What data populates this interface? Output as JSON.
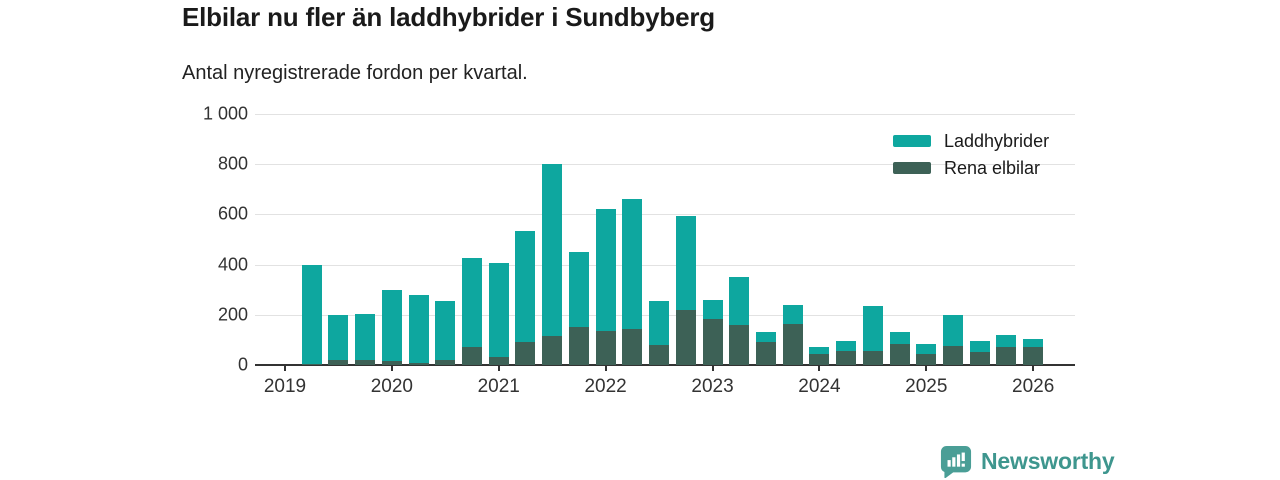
{
  "header": {
    "title": "Elbilar nu fler än laddhybrider i Sundbyberg",
    "subtitle": "Antal nyregistrerade fordon per kvartal."
  },
  "footer": {
    "brand": "Newsworthy"
  },
  "colors": {
    "laddhybrider": "#0ea79f",
    "rena_elbilar": "#3d6156",
    "gridline": "#e2e2e2",
    "axis": "#333333",
    "brand_teal": "#3e968e",
    "logo_icon": "#4a9e96"
  },
  "chart_data": {
    "type": "bar",
    "stacked": true,
    "title": "Elbilar nu fler än laddhybrider i Sundbyberg",
    "subtitle": "Antal nyregistrerade fordon per kvartal.",
    "xlabel": "",
    "ylabel": "",
    "ylim": [
      0,
      1000
    ],
    "grid": true,
    "legend_position": "top-right",
    "yticks": [
      {
        "value": 0,
        "label": "0"
      },
      {
        "value": 200,
        "label": "200"
      },
      {
        "value": 400,
        "label": "400"
      },
      {
        "value": 600,
        "label": "600"
      },
      {
        "value": 800,
        "label": "800"
      },
      {
        "value": 1000,
        "label": "1 000"
      }
    ],
    "xticks": [
      "2019",
      "2020",
      "2021",
      "2022",
      "2023",
      "2024",
      "2025",
      "2026"
    ],
    "categories": [
      "2019 Q2",
      "2019 Q3",
      "2019 Q4",
      "2020 Q1",
      "2020 Q2",
      "2020 Q3",
      "2020 Q4",
      "2021 Q1",
      "2021 Q2",
      "2021 Q3",
      "2021 Q4",
      "2022 Q1",
      "2022 Q2",
      "2022 Q3",
      "2022 Q4",
      "2023 Q1",
      "2023 Q2",
      "2023 Q3",
      "2023 Q4",
      "2024 Q1",
      "2024 Q2",
      "2024 Q3",
      "2024 Q4",
      "2025 Q1",
      "2025 Q2",
      "2025 Q3",
      "2025 Q4",
      "2026 Q1"
    ],
    "stack_order": [
      "Rena elbilar",
      "Laddhybrider"
    ],
    "series": [
      {
        "name": "Laddhybrider",
        "color": "#0ea79f",
        "values": [
          395,
          180,
          185,
          285,
          270,
          235,
          355,
          375,
          445,
          685,
          300,
          485,
          515,
          175,
          375,
          75,
          190,
          40,
          75,
          25,
          40,
          180,
          45,
          40,
          125,
          45,
          50,
          35
        ]
      },
      {
        "name": "Rena elbilar",
        "color": "#3d6156",
        "values": [
          5,
          20,
          20,
          15,
          10,
          20,
          70,
          30,
          90,
          115,
          150,
          135,
          145,
          80,
          220,
          185,
          160,
          90,
          165,
          45,
          55,
          55,
          85,
          45,
          75,
          50,
          70,
          70
        ]
      }
    ]
  }
}
